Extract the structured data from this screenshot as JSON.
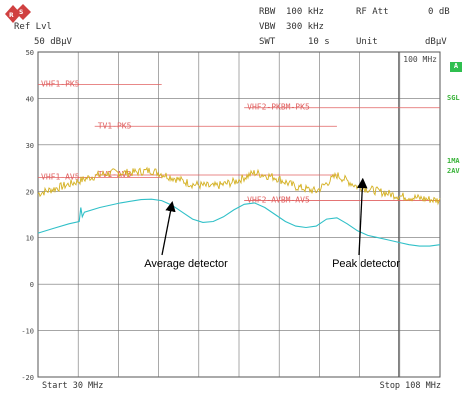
{
  "header": {
    "ref_lvl_label": "Ref Lvl",
    "ref_lvl_value": "50 dBµV",
    "rbw_label": "RBW",
    "rbw_value": "100 kHz",
    "vbw_label": "VBW",
    "vbw_value": "300 kHz",
    "swt_label": "SWT",
    "swt_value": "10 s",
    "rf_att_label": "RF Att",
    "rf_att_value": "0 dB",
    "unit_label": "Unit",
    "unit_value": "dBµV"
  },
  "sidebar": {
    "box_label": "A",
    "sgl_label": "SGL",
    "trace1_label": "1MA",
    "trace2_label": "2AV"
  },
  "colors": {
    "limit_line": "#e06060",
    "peak_trace": "#d4b020",
    "average_trace": "#30c0c8",
    "grid": "#707070",
    "side_label": "#3ab33a"
  },
  "chart_data": {
    "type": "line",
    "x_unit": "MHz",
    "xlim": [
      30,
      108
    ],
    "ylim": [
      -20,
      50
    ],
    "y_ticks": [
      50,
      40,
      30,
      20,
      10,
      0,
      -10,
      -20
    ],
    "y_tick_labels": [
      "50",
      "40",
      "30",
      "20",
      "10",
      "0",
      "-10",
      "-20"
    ],
    "grid": true,
    "start_label": "Start 30 MHz",
    "stop_label": "Stop 108 MHz",
    "marker_label": "100 MHz",
    "marker_x": 100,
    "limit_lines": [
      {
        "label": "VHF1-PK5",
        "x": [
          30,
          54
        ],
        "y": 43
      },
      {
        "label": "VHF2-PKBM-PK5",
        "x": [
          70,
          108
        ],
        "y": 38
      },
      {
        "label": "TV1-PK5",
        "x": [
          41,
          88
        ],
        "y": 34
      },
      {
        "label": "VHF1-AV5",
        "x": [
          30,
          54
        ],
        "y": 23
      },
      {
        "label": "TV1-AV5",
        "x": [
          41,
          88
        ],
        "y": 23.5
      },
      {
        "label": "VHF2-AVBM-AV5",
        "x": [
          70,
          108
        ],
        "y": 18
      }
    ],
    "series": [
      {
        "name": "Peak",
        "x": [
          30,
          33,
          36,
          40,
          44,
          48,
          52,
          56,
          60,
          64,
          68,
          72,
          76,
          80,
          84,
          88,
          92,
          96,
          100,
          104,
          108
        ],
        "y": [
          19.5,
          20.5,
          21.5,
          23,
          24,
          24,
          24.5,
          23,
          21.5,
          21,
          22,
          24,
          23,
          21,
          20,
          23.5,
          21,
          20,
          19,
          18.5,
          18
        ]
      },
      {
        "name": "Average",
        "x": [
          30,
          33,
          36,
          38,
          38.3,
          38.6,
          39,
          42,
          46,
          50,
          52,
          54,
          56,
          58,
          60,
          62,
          64,
          66,
          68,
          70,
          72,
          74,
          76,
          78,
          80,
          82,
          84,
          86,
          88,
          90,
          92,
          94,
          96,
          98,
          100,
          102,
          104,
          106,
          108
        ],
        "y": [
          11,
          12,
          13,
          13.5,
          16.5,
          14.5,
          15.5,
          16.5,
          17.5,
          18.2,
          18.3,
          18,
          17,
          15.5,
          14,
          13.3,
          13.5,
          14.5,
          16,
          17.2,
          17.5,
          16.5,
          15,
          13.5,
          12.5,
          12.2,
          12.5,
          14,
          14.3,
          13,
          11.5,
          10.5,
          10,
          9.5,
          9,
          8.5,
          8.2,
          8.2,
          8.5
        ]
      }
    ],
    "annotations": [
      {
        "text": "Average detector",
        "target_x": 56,
        "target_y": 18
      },
      {
        "text": "Peak detector",
        "target_x": 93,
        "target_y": 23
      }
    ]
  }
}
